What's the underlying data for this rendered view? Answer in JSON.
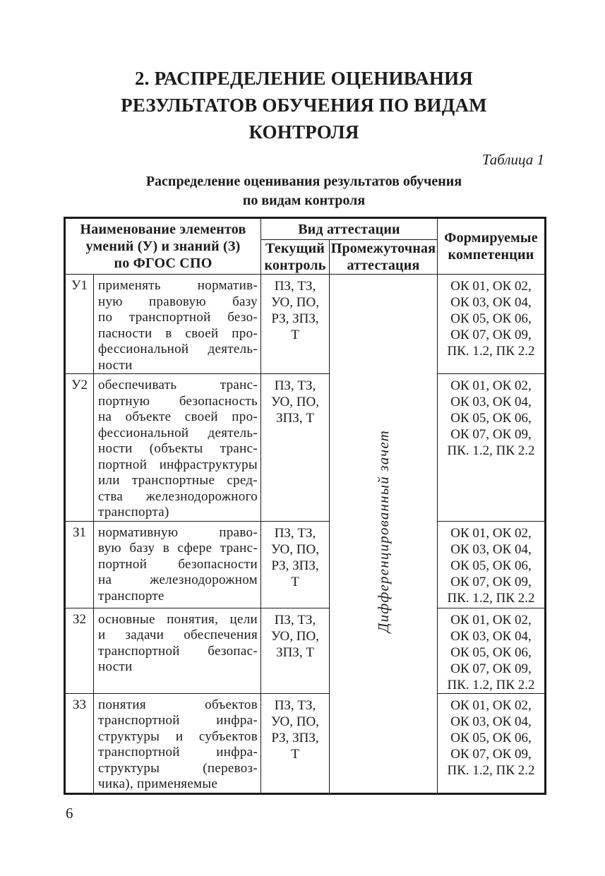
{
  "page": {
    "title": "2. РАСПРЕДЕЛЕНИЕ ОЦЕНИВАНИЯ\nРЕЗУЛЬТАТОВ ОБУЧЕНИЯ ПО ВИДАМ\nКОНТРОЛЯ",
    "table_number_label": "Таблица 1",
    "table_caption": "Распределение оценивания результатов обучения\nпо видам контроля",
    "page_number": "6"
  },
  "table": {
    "header": {
      "elements": "Наименование элементов\nумений (У) и знаний (З)\nпо ФГОС СПО",
      "attestation_group": "Вид аттестации",
      "current_control": "Текущий\nконтроль",
      "intermediate_attestation": "Промежуточная\nаттестация",
      "competencies": "Формируемые\nкомпетенции"
    },
    "intermediate_value": "Дифференцированный зачет",
    "rows": [
      {
        "code": "У1",
        "description": "применять норматив-\nную правовую базу\nпо транспортной безо-\nпасности в своей про-\nфессиональной деятель-\nности",
        "current": "ПЗ, ТЗ,\nУО, ПО,\nРЗ, ЗПЗ,\nТ",
        "competencies": "ОК 01, ОК 02,\nОК 03, ОК 04,\nОК 05, ОК 06,\nОК 07, ОК 09,\nПК. 1.2, ПК 2.2"
      },
      {
        "code": "У2",
        "description": "обеспечивать транс-\nпортную безопасность\nна объекте своей про-\nфессиональной деятель-\nности (объекты транс-\nпортной инфраструктуры\nили транспортные сред-\nства железнодорожного\nтранспорта)",
        "current": "ПЗ, ТЗ,\nУО, ПО,\nЗПЗ, Т",
        "competencies": "ОК 01, ОК 02,\nОК 03, ОК 04,\nОК 05, ОК 06,\nОК 07, ОК 09,\nПК. 1.2, ПК 2.2"
      },
      {
        "code": "З1",
        "description": "нормативную право-\nвую базу в сфере транс-\nпортной безопасности\nна железнодорожном\nтранспорте",
        "current": "ПЗ, ТЗ,\nУО, ПО,\nРЗ, ЗПЗ,\nТ",
        "competencies": "ОК 01, ОК 02,\nОК 03, ОК 04,\nОК 05, ОК 06,\nОК 07, ОК 09,\nПК. 1.2, ПК 2.2"
      },
      {
        "code": "З2",
        "description": "основные понятия, цели\nи задачи обеспечения\nтранспортной безопас-\nности",
        "current": "ПЗ, ТЗ,\nУО, ПО,\nЗПЗ, Т",
        "competencies": "ОК 01, ОК 02,\nОК 03, ОК 04,\nОК 05, ОК 06,\nОК 07, ОК 09,\nПК. 1.2, ПК 2.2"
      },
      {
        "code": "З3",
        "description": "понятия объектов\nтранспортной инфра-\nструктуры и субъектов\nтранспортной инфра-\nструктуры (перевоз-\nчика), применяемые",
        "current": "ПЗ, ТЗ,\nУО, ПО,\nРЗ, ЗПЗ,\nТ",
        "competencies": "ОК 01, ОК 02,\nОК 03, ОК 04,\nОК 05, ОК 06,\nОК 07, ОК 09,\nПК. 1.2, ПК 2.2"
      }
    ]
  }
}
